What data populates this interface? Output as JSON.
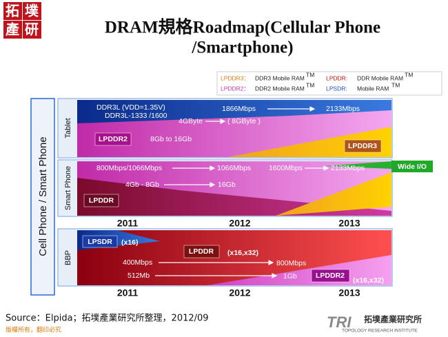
{
  "logo": {
    "chars": [
      "拓",
      "墣",
      "產",
      "研"
    ]
  },
  "title": {
    "line1": "DRAM規格Roadmap(Cellular Phone",
    "line2": "/Smartphone)"
  },
  "legend": [
    {
      "tag": "LPDDR3：",
      "desc": "DDR3 Mobile RAM",
      "tm": "TM"
    },
    {
      "tag": "LPDDR:",
      "desc": "DDR Mobile RAM",
      "tm": "TM"
    },
    {
      "tag": "LPDDR2：",
      "desc": "DDR2 Mobile RAM",
      "tm": "TM"
    },
    {
      "tag": "LPSDR:",
      "desc": "Mobile RAM",
      "tm": "TM"
    }
  ],
  "side_label": "Cell Phone / Smart Phone",
  "tablet": {
    "label": "Tablet",
    "ddr3l_vdd": "DDR3L (VDD=1.35V)",
    "ddr3l_speed": "DDR3L-1333 /1600",
    "speed_from": "1866Mbps",
    "speed_to": "2133Mbps",
    "density_from": "4GByte",
    "density_to": "( 8GByte )",
    "lpddr2": "LPDDR2",
    "lpddr2_density": "8Gb to 16Gb",
    "lpddr3": "LPDDR3"
  },
  "smartphone": {
    "label": "Smart Phone",
    "speed_from": "800Mbps/1066Mbps",
    "speed_mid": "1066Mbps",
    "speed_next": "1600Mbps",
    "speed_to": "2133Mbps",
    "density_from": "4Gb - 8Gb",
    "density_to": "16Gb",
    "lpddr": "LPDDR",
    "wide_io": "Wide I/O"
  },
  "years": [
    "2011",
    "2012",
    "2013"
  ],
  "bbp": {
    "label": "BBP",
    "lpsdr": "LPSDR",
    "lpsdr_width": "(x16)",
    "lpddr": "LPDDR",
    "lpddr_width": "(x16,x32)",
    "speed_from": "400Mbps",
    "speed_to": "800Mbps",
    "density_from": "512Mb",
    "density_to": "1Gb",
    "lpddr2": "LPDDR2",
    "lpddr2_width": "(x16,x32)"
  },
  "footer": {
    "source": "Source：Elpida；拓墣產業研究所整理，2012/09",
    "copyright": "版權所有，翻印必究",
    "tri_mark": "TRI",
    "tri_name": "拓墣產業研究所",
    "tri_english": "TOPOLOGY RESEARCH INSTITUTE"
  }
}
